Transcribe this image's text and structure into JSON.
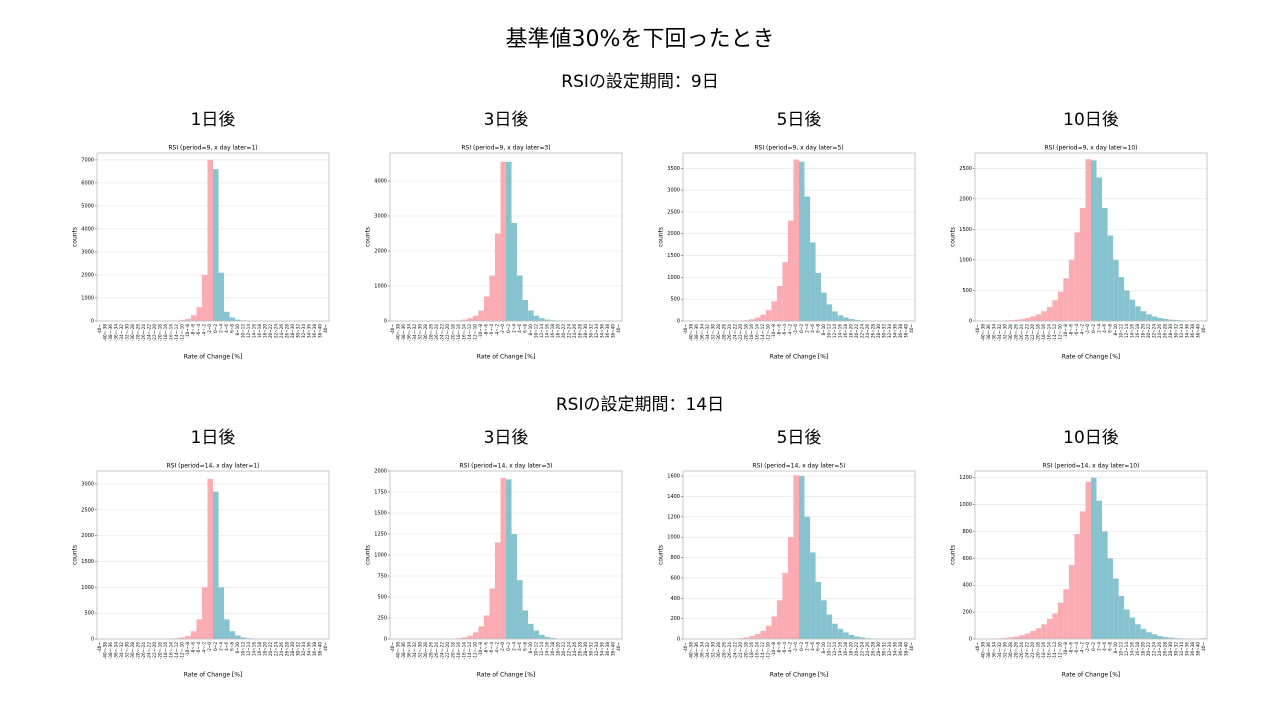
{
  "title": "基準値30%を下回ったとき",
  "sections": [
    {
      "heading": "RSIの設定期間：9日"
    },
    {
      "heading": "RSIの設定期間：14日"
    }
  ],
  "chart_data": [
    {
      "type": "bar",
      "panel_title": "1日後",
      "title": "RSI (period=9, x day later=1)",
      "xlabel": "Rate of Change [%]",
      "ylabel": "counts",
      "grid": true,
      "bar_colors": [
        "#fbacb3",
        "#86c3ce"
      ],
      "categories": [
        "-40~",
        "-40~-38",
        "-38~-36",
        "-36~-34",
        "-34~-32",
        "-32~-30",
        "-30~-28",
        "-28~-26",
        "-26~-24",
        "-24~-22",
        "-22~-20",
        "-20~-18",
        "-18~-16",
        "-16~-14",
        "-14~-12",
        "-12~-10",
        "-10~-8",
        "-8~-6",
        "-6~-4",
        "-4~-2",
        "-2~0",
        "0~2",
        "2~4",
        "4~6",
        "6~8",
        "8~10",
        "10~12",
        "12~14",
        "14~16",
        "16~18",
        "18~20",
        "20~22",
        "22~24",
        "24~26",
        "26~28",
        "28~30",
        "30~32",
        "32~34",
        "34~36",
        "36~38",
        "38~40",
        "40~"
      ],
      "values": [
        0,
        0,
        0,
        0,
        0,
        0,
        0,
        0,
        0,
        0,
        0,
        0,
        5,
        10,
        20,
        50,
        100,
        250,
        600,
        2000,
        7000,
        6600,
        2100,
        400,
        150,
        60,
        30,
        15,
        8,
        5,
        0,
        0,
        0,
        0,
        0,
        0,
        0,
        0,
        0,
        0,
        0,
        5
      ],
      "ylim": [
        0,
        7300
      ],
      "yticks": [
        0,
        1000,
        2000,
        3000,
        4000,
        5000,
        6000,
        7000
      ]
    },
    {
      "type": "bar",
      "panel_title": "3日後",
      "title": "RSI (period=9, x day later=3)",
      "xlabel": "Rate of Change [%]",
      "ylabel": "counts",
      "grid": true,
      "bar_colors": [
        "#fbacb3",
        "#86c3ce"
      ],
      "categories": [
        "-40~",
        "-40~-38",
        "-38~-36",
        "-36~-34",
        "-34~-32",
        "-32~-30",
        "-30~-28",
        "-28~-26",
        "-26~-24",
        "-24~-22",
        "-22~-20",
        "-20~-18",
        "-18~-16",
        "-16~-14",
        "-14~-12",
        "-12~-10",
        "-10~-8",
        "-8~-6",
        "-6~-4",
        "-4~-2",
        "-2~0",
        "0~2",
        "2~4",
        "4~6",
        "6~8",
        "8~10",
        "10~12",
        "12~14",
        "14~16",
        "16~18",
        "18~20",
        "20~22",
        "22~24",
        "24~26",
        "26~28",
        "28~30",
        "30~32",
        "32~34",
        "34~36",
        "36~38",
        "38~40",
        "40~"
      ],
      "values": [
        0,
        0,
        0,
        0,
        0,
        0,
        0,
        0,
        0,
        0,
        5,
        10,
        20,
        40,
        80,
        150,
        300,
        700,
        1300,
        2500,
        4550,
        4550,
        2800,
        1300,
        600,
        300,
        150,
        80,
        40,
        20,
        10,
        5,
        0,
        0,
        0,
        0,
        0,
        0,
        0,
        0,
        0,
        5
      ],
      "ylim": [
        0,
        4800
      ],
      "yticks": [
        0,
        1000,
        2000,
        3000,
        4000
      ]
    },
    {
      "type": "bar",
      "panel_title": "5日後",
      "title": "RSI (period=9, x day later=5)",
      "xlabel": "Rate of Change [%]",
      "ylabel": "counts",
      "grid": true,
      "bar_colors": [
        "#fbacb3",
        "#86c3ce"
      ],
      "categories": [
        "-40~",
        "-40~-38",
        "-38~-36",
        "-36~-34",
        "-34~-32",
        "-32~-30",
        "-30~-28",
        "-28~-26",
        "-26~-24",
        "-24~-22",
        "-22~-20",
        "-20~-18",
        "-18~-16",
        "-16~-14",
        "-14~-12",
        "-12~-10",
        "-10~-8",
        "-8~-6",
        "-6~-4",
        "-4~-2",
        "-2~0",
        "0~2",
        "2~4",
        "4~6",
        "6~8",
        "8~10",
        "10~12",
        "12~14",
        "14~16",
        "16~18",
        "18~20",
        "20~22",
        "22~24",
        "24~26",
        "26~28",
        "28~30",
        "30~32",
        "32~34",
        "34~36",
        "36~38",
        "38~40",
        "40~"
      ],
      "values": [
        0,
        0,
        0,
        0,
        0,
        0,
        0,
        0,
        0,
        5,
        10,
        20,
        40,
        80,
        140,
        250,
        450,
        800,
        1350,
        2300,
        3700,
        3650,
        2850,
        1800,
        1100,
        650,
        380,
        220,
        130,
        80,
        45,
        25,
        15,
        8,
        5,
        0,
        0,
        0,
        0,
        0,
        0,
        5
      ],
      "ylim": [
        0,
        3850
      ],
      "yticks": [
        0,
        500,
        1000,
        1500,
        2000,
        2500,
        3000,
        3500
      ]
    },
    {
      "type": "bar",
      "panel_title": "10日後",
      "title": "RSI (period=9, x day later=10)",
      "xlabel": "Rate of Change [%]",
      "ylabel": "counts",
      "grid": true,
      "bar_colors": [
        "#fbacb3",
        "#86c3ce"
      ],
      "categories": [
        "-40~",
        "-40~-38",
        "-38~-36",
        "-36~-34",
        "-34~-32",
        "-32~-30",
        "-30~-28",
        "-28~-26",
        "-26~-24",
        "-24~-22",
        "-22~-20",
        "-20~-18",
        "-18~-16",
        "-16~-14",
        "-14~-12",
        "-12~-10",
        "-10~-8",
        "-8~-6",
        "-6~-4",
        "-4~-2",
        "-2~0",
        "0~2",
        "2~4",
        "4~6",
        "6~8",
        "8~10",
        "10~12",
        "12~14",
        "14~16",
        "16~18",
        "18~20",
        "20~22",
        "22~24",
        "24~26",
        "26~28",
        "28~30",
        "30~32",
        "32~34",
        "34~36",
        "36~38",
        "38~40",
        "40~"
      ],
      "values": [
        0,
        0,
        0,
        0,
        0,
        8,
        12,
        20,
        30,
        50,
        75,
        110,
        160,
        230,
        340,
        480,
        700,
        1000,
        1450,
        1850,
        2650,
        2630,
        2350,
        1850,
        1400,
        1000,
        720,
        500,
        350,
        240,
        160,
        110,
        75,
        50,
        35,
        22,
        15,
        10,
        5,
        3,
        0,
        5
      ],
      "ylim": [
        0,
        2750
      ],
      "yticks": [
        0,
        500,
        1000,
        1500,
        2000,
        2500
      ]
    },
    {
      "type": "bar",
      "panel_title": "1日後",
      "title": "RSI (period=14, x day later=1)",
      "xlabel": "Rate of Change [%]",
      "ylabel": "counts",
      "grid": true,
      "bar_colors": [
        "#fbacb3",
        "#86c3ce"
      ],
      "categories": [
        "-40~",
        "-40~-38",
        "-38~-36",
        "-36~-34",
        "-34~-32",
        "-32~-30",
        "-30~-28",
        "-28~-26",
        "-26~-24",
        "-24~-22",
        "-22~-20",
        "-20~-18",
        "-18~-16",
        "-16~-14",
        "-14~-12",
        "-12~-10",
        "-10~-8",
        "-8~-6",
        "-6~-4",
        "-4~-2",
        "-2~0",
        "0~2",
        "2~4",
        "4~6",
        "6~8",
        "8~10",
        "10~12",
        "12~14",
        "14~16",
        "16~18",
        "18~20",
        "20~22",
        "22~24",
        "24~26",
        "26~28",
        "28~30",
        "30~32",
        "32~34",
        "34~36",
        "36~38",
        "38~40",
        "40~"
      ],
      "values": [
        0,
        0,
        0,
        0,
        0,
        0,
        0,
        0,
        0,
        0,
        0,
        0,
        0,
        5,
        15,
        30,
        60,
        150,
        380,
        1000,
        3100,
        2850,
        1000,
        380,
        150,
        70,
        30,
        15,
        5,
        0,
        0,
        0,
        0,
        0,
        0,
        0,
        0,
        0,
        0,
        0,
        0,
        0
      ],
      "ylim": [
        0,
        3250
      ],
      "yticks": [
        0,
        500,
        1000,
        1500,
        2000,
        2500,
        3000
      ]
    },
    {
      "type": "bar",
      "panel_title": "3日後",
      "title": "RSI (period=14, x day later=3)",
      "xlabel": "Rate of Change [%]",
      "ylabel": "counts",
      "grid": true,
      "bar_colors": [
        "#fbacb3",
        "#86c3ce"
      ],
      "categories": [
        "-40~",
        "-40~-38",
        "-38~-36",
        "-36~-34",
        "-34~-32",
        "-32~-30",
        "-30~-28",
        "-28~-26",
        "-26~-24",
        "-24~-22",
        "-22~-20",
        "-20~-18",
        "-18~-16",
        "-16~-14",
        "-14~-12",
        "-12~-10",
        "-10~-8",
        "-8~-6",
        "-6~-4",
        "-4~-2",
        "-2~0",
        "0~2",
        "2~4",
        "4~6",
        "6~8",
        "8~10",
        "10~12",
        "12~14",
        "14~16",
        "16~18",
        "18~20",
        "20~22",
        "22~24",
        "24~26",
        "26~28",
        "28~30",
        "30~32",
        "32~34",
        "34~36",
        "36~38",
        "38~40",
        "40~"
      ],
      "values": [
        0,
        0,
        0,
        0,
        0,
        0,
        0,
        0,
        0,
        0,
        0,
        5,
        10,
        20,
        40,
        80,
        150,
        280,
        600,
        1150,
        1920,
        1900,
        1250,
        700,
        340,
        180,
        100,
        50,
        25,
        12,
        5,
        0,
        0,
        0,
        0,
        0,
        0,
        0,
        0,
        0,
        0,
        0
      ],
      "ylim": [
        0,
        2000
      ],
      "yticks": [
        0,
        250,
        500,
        750,
        1000,
        1250,
        1500,
        1750,
        2000
      ]
    },
    {
      "type": "bar",
      "panel_title": "5日後",
      "title": "RSI (period=14, x day later=5)",
      "xlabel": "Rate of Change [%]",
      "ylabel": "counts",
      "grid": true,
      "bar_colors": [
        "#fbacb3",
        "#86c3ce"
      ],
      "categories": [
        "-40~",
        "-40~-38",
        "-38~-36",
        "-36~-34",
        "-34~-32",
        "-32~-30",
        "-30~-28",
        "-28~-26",
        "-26~-24",
        "-24~-22",
        "-22~-20",
        "-20~-18",
        "-18~-16",
        "-16~-14",
        "-14~-12",
        "-12~-10",
        "-10~-8",
        "-8~-6",
        "-6~-4",
        "-4~-2",
        "-2~0",
        "0~2",
        "2~4",
        "4~6",
        "6~8",
        "8~10",
        "10~12",
        "12~14",
        "14~16",
        "16~18",
        "18~20",
        "20~22",
        "22~24",
        "24~26",
        "26~28",
        "28~30",
        "30~32",
        "32~34",
        "34~36",
        "36~38",
        "38~40",
        "40~"
      ],
      "values": [
        0,
        0,
        0,
        0,
        0,
        0,
        0,
        0,
        0,
        5,
        8,
        15,
        30,
        50,
        80,
        130,
        220,
        380,
        650,
        1000,
        1610,
        1600,
        1200,
        850,
        560,
        380,
        240,
        150,
        100,
        65,
        40,
        25,
        15,
        8,
        5,
        0,
        0,
        0,
        0,
        0,
        0,
        3
      ],
      "ylim": [
        0,
        1650
      ],
      "yticks": [
        0,
        200,
        400,
        600,
        800,
        1000,
        1200,
        1400,
        1600
      ]
    },
    {
      "type": "bar",
      "panel_title": "10日後",
      "title": "RSI (period=14, x day later=10)",
      "xlabel": "Rate of Change [%]",
      "ylabel": "counts",
      "grid": true,
      "bar_colors": [
        "#fbacb3",
        "#86c3ce"
      ],
      "categories": [
        "-40~",
        "-40~-38",
        "-38~-36",
        "-36~-34",
        "-34~-32",
        "-32~-30",
        "-30~-28",
        "-28~-26",
        "-26~-24",
        "-24~-22",
        "-22~-20",
        "-20~-18",
        "-18~-16",
        "-16~-14",
        "-14~-12",
        "-12~-10",
        "-10~-8",
        "-8~-6",
        "-6~-4",
        "-4~-2",
        "-2~0",
        "0~2",
        "2~4",
        "4~6",
        "6~8",
        "8~10",
        "10~12",
        "12~14",
        "14~16",
        "16~18",
        "18~20",
        "20~22",
        "22~24",
        "24~26",
        "26~28",
        "28~30",
        "30~32",
        "32~34",
        "34~36",
        "36~38",
        "38~40",
        "40~"
      ],
      "values": [
        0,
        0,
        0,
        3,
        5,
        8,
        12,
        18,
        28,
        40,
        60,
        80,
        110,
        150,
        190,
        270,
        370,
        550,
        780,
        950,
        1170,
        1200,
        1030,
        800,
        600,
        450,
        320,
        220,
        160,
        110,
        75,
        50,
        35,
        22,
        15,
        10,
        6,
        4,
        3,
        0,
        0,
        5
      ],
      "ylim": [
        0,
        1250
      ],
      "yticks": [
        0,
        200,
        400,
        600,
        800,
        1000,
        1200
      ]
    }
  ]
}
